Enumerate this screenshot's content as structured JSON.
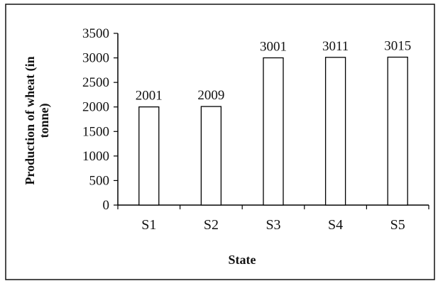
{
  "chart_data": {
    "type": "bar",
    "title": "",
    "xlabel": "State",
    "ylabel_lines": [
      "Production of wheat (in",
      "tonne)"
    ],
    "categories": [
      "S1",
      "S2",
      "S3",
      "S4",
      "S5"
    ],
    "values": [
      2001,
      2009,
      3001,
      3011,
      3015
    ],
    "data_labels": [
      "2001",
      "2009",
      "3001",
      "3011",
      "3015"
    ],
    "ylim": [
      0,
      3500
    ],
    "yticks": [
      "0",
      "500",
      "1000",
      "1500",
      "2000",
      "2500",
      "3000",
      "3500"
    ],
    "grid": false,
    "legend": "none",
    "bar_fill": "#ffffff",
    "bar_stroke": "#000000"
  }
}
